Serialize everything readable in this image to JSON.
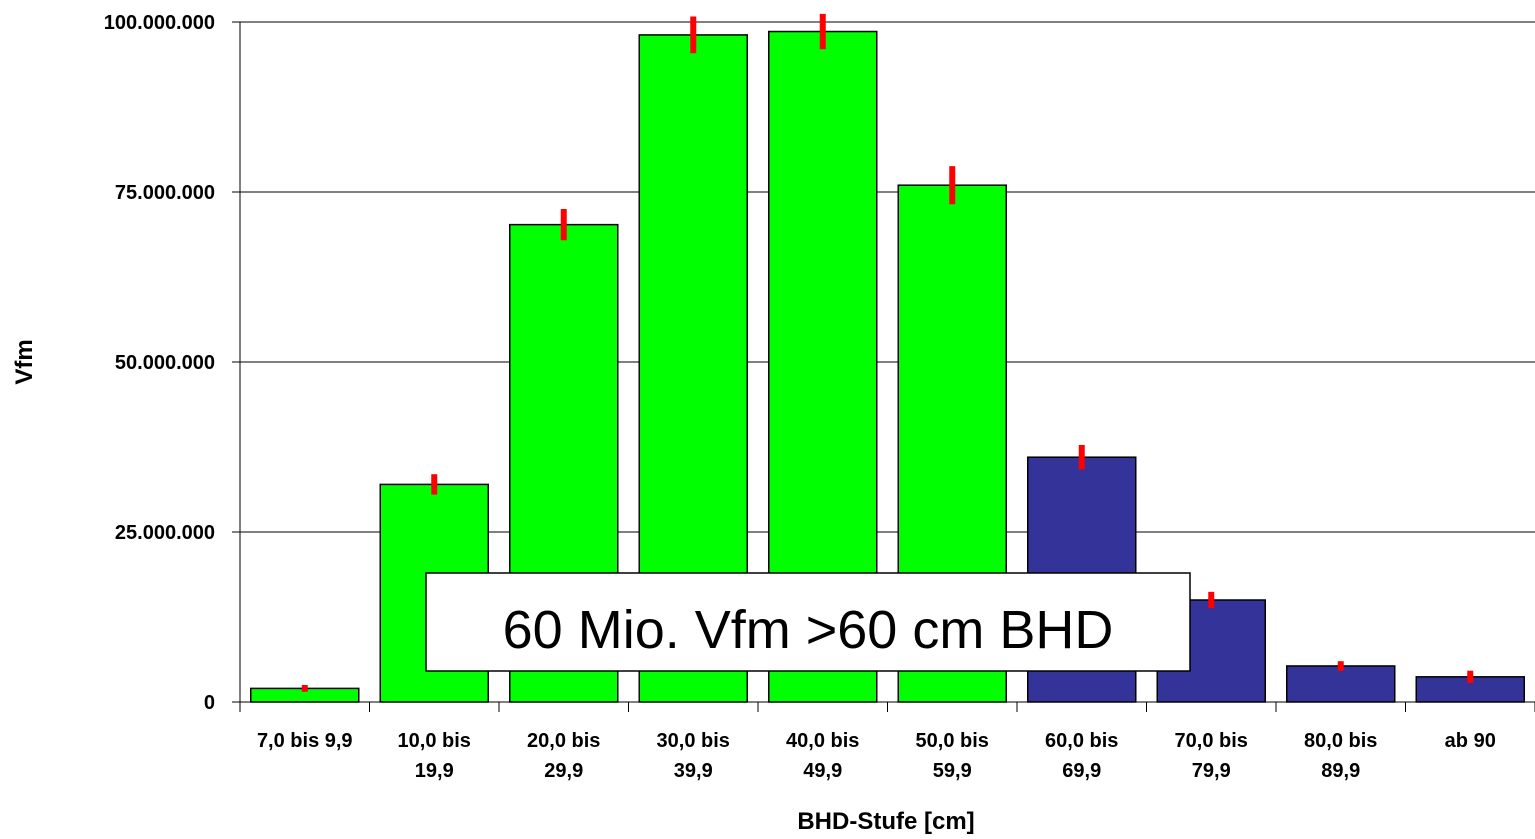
{
  "chart_data": {
    "type": "bar",
    "title": "",
    "xlabel": "BHD-Stufe [cm]",
    "ylabel": "Vfm",
    "ylim": [
      0,
      100000000
    ],
    "yticks": [
      {
        "value": 0,
        "label": "0"
      },
      {
        "value": 25000000,
        "label": "25.000.000"
      },
      {
        "value": 50000000,
        "label": "50.000.000"
      },
      {
        "value": 75000000,
        "label": "75.000.000"
      },
      {
        "value": 100000000,
        "label": "100.000.000"
      }
    ],
    "grid": true,
    "categories": [
      [
        "7,0 bis 9,9"
      ],
      [
        "10,0 bis",
        "19,9"
      ],
      [
        "20,0 bis",
        "29,9"
      ],
      [
        "30,0 bis",
        "39,9"
      ],
      [
        "40,0 bis",
        "49,9"
      ],
      [
        "50,0 bis",
        "59,9"
      ],
      [
        "60,0 bis",
        "69,9"
      ],
      [
        "70,0 bis",
        "79,9"
      ],
      [
        "80,0 bis",
        "89,9"
      ],
      [
        "ab 90"
      ]
    ],
    "values": [
      2000000,
      32000000,
      70200000,
      98100000,
      98600000,
      76000000,
      36000000,
      15000000,
      5300000,
      3700000
    ],
    "error": [
      500000,
      1500000,
      2300000,
      2700000,
      2600000,
      2800000,
      1800000,
      1200000,
      700000,
      900000
    ],
    "bar_colors": [
      "#00ff00",
      "#00ff00",
      "#00ff00",
      "#00ff00",
      "#00ff00",
      "#00ff00",
      "#333399",
      "#333399",
      "#333399",
      "#333399"
    ],
    "error_color": "#ff0000",
    "annotation": "60 Mio. Vfm >60 cm BHD"
  }
}
